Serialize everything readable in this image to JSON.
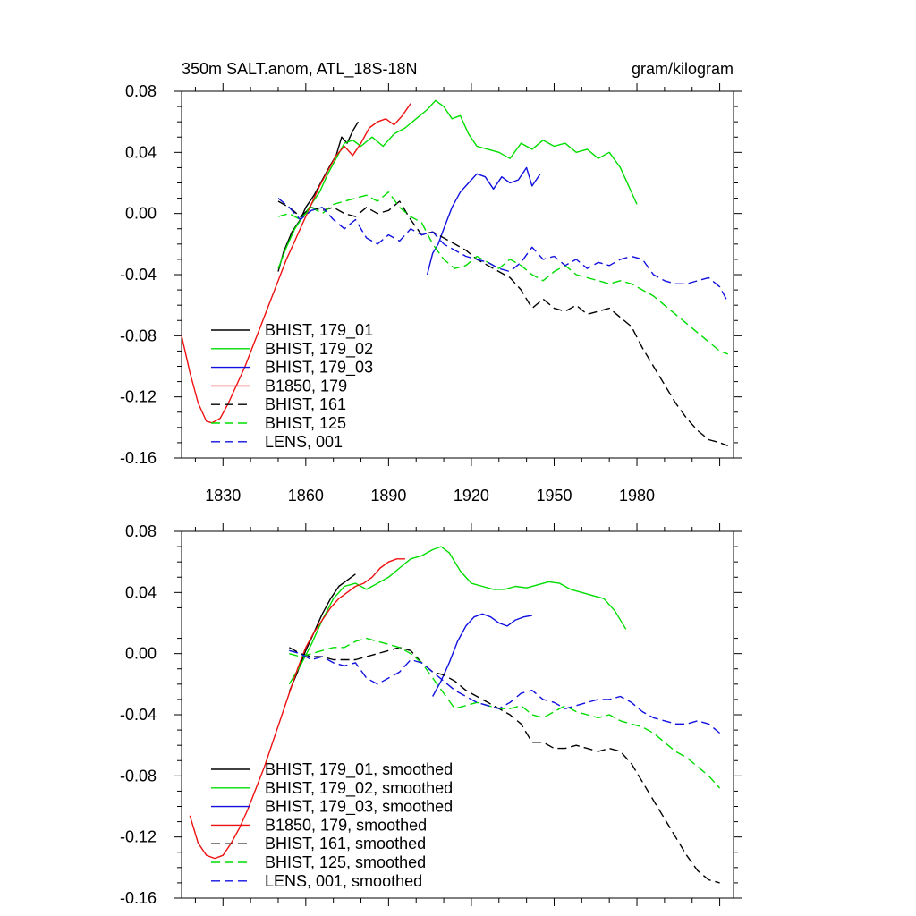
{
  "chart_data": [
    {
      "type": "line",
      "title": "350m SALT.anom, ATL_18S-18N",
      "units": "gram/kilogram",
      "xlim": [
        1815,
        2015
      ],
      "ylim": [
        -0.16,
        0.08
      ],
      "x_ticks": [
        1830,
        1860,
        1890,
        1920,
        1950,
        1980
      ],
      "x_tick_labels": [
        "1830",
        "1860",
        "1890",
        "1920",
        "1950",
        "1980"
      ],
      "y_ticks": [
        -0.16,
        -0.12,
        -0.08,
        -0.04,
        0.0,
        0.04,
        0.08
      ],
      "y_tick_labels": [
        "-0.16",
        "-0.12",
        "-0.08",
        "-0.04",
        "0.00",
        "0.04",
        "0.08"
      ],
      "legend_position": "bottom-left",
      "series": [
        {
          "name": "BHIST, 179_01",
          "color": "#000000",
          "dash": "solid",
          "x": [
            1850,
            1852,
            1855,
            1858,
            1860,
            1863,
            1866,
            1869,
            1871,
            1873,
            1875,
            1877,
            1879
          ],
          "y": [
            -0.038,
            -0.025,
            -0.012,
            -0.004,
            0.004,
            0.012,
            0.022,
            0.032,
            0.038,
            0.05,
            0.046,
            0.054,
            0.06
          ]
        },
        {
          "name": "BHIST, 179_02",
          "color": "#00dd00",
          "dash": "solid",
          "x": [
            1850,
            1853,
            1856,
            1859,
            1862,
            1865,
            1868,
            1871,
            1874,
            1877,
            1880,
            1884,
            1888,
            1892,
            1896,
            1900,
            1904,
            1907,
            1910,
            1913,
            1916,
            1919,
            1922,
            1926,
            1930,
            1934,
            1938,
            1942,
            1946,
            1950,
            1954,
            1958,
            1962,
            1966,
            1970,
            1974,
            1977,
            1980
          ],
          "y": [
            -0.036,
            -0.022,
            -0.01,
            -0.002,
            0.006,
            0.014,
            0.026,
            0.036,
            0.046,
            0.048,
            0.044,
            0.05,
            0.044,
            0.052,
            0.056,
            0.062,
            0.068,
            0.074,
            0.07,
            0.062,
            0.064,
            0.052,
            0.044,
            0.042,
            0.04,
            0.036,
            0.046,
            0.042,
            0.048,
            0.044,
            0.046,
            0.04,
            0.042,
            0.036,
            0.04,
            0.03,
            0.018,
            0.006
          ]
        },
        {
          "name": "BHIST, 179_03",
          "color": "#1010e0",
          "dash": "solid",
          "x": [
            1904,
            1906,
            1908,
            1910,
            1913,
            1916,
            1919,
            1922,
            1925,
            1928,
            1931,
            1934,
            1937,
            1940,
            1942,
            1945
          ],
          "y": [
            -0.04,
            -0.026,
            -0.02,
            -0.01,
            0.004,
            0.014,
            0.02,
            0.026,
            0.024,
            0.016,
            0.024,
            0.02,
            0.022,
            0.03,
            0.018,
            0.026
          ]
        },
        {
          "name": "B1850, 179",
          "color": "#ee1010",
          "dash": "solid",
          "x": [
            1815,
            1818,
            1821,
            1824,
            1826,
            1829,
            1832,
            1835,
            1838,
            1841,
            1844,
            1847,
            1850,
            1853,
            1856,
            1859,
            1862,
            1865,
            1868,
            1871,
            1874,
            1877,
            1880,
            1883,
            1886,
            1889,
            1892,
            1895,
            1898
          ],
          "y": [
            -0.08,
            -0.104,
            -0.124,
            -0.136,
            -0.137,
            -0.134,
            -0.124,
            -0.112,
            -0.1,
            -0.086,
            -0.072,
            -0.058,
            -0.044,
            -0.03,
            -0.018,
            -0.006,
            0.006,
            0.018,
            0.028,
            0.038,
            0.044,
            0.038,
            0.046,
            0.056,
            0.06,
            0.062,
            0.058,
            0.064,
            0.072
          ]
        },
        {
          "name": "BHIST, 161",
          "color": "#000000",
          "dash": "dashed",
          "x": [
            1850,
            1854,
            1858,
            1862,
            1866,
            1870,
            1874,
            1878,
            1882,
            1886,
            1890,
            1894,
            1898,
            1902,
            1906,
            1910,
            1914,
            1918,
            1922,
            1926,
            1930,
            1934,
            1938,
            1942,
            1946,
            1950,
            1954,
            1958,
            1962,
            1966,
            1970,
            1974,
            1978,
            1982,
            1986,
            1990,
            1994,
            1998,
            2002,
            2006,
            2010,
            2013
          ],
          "y": [
            0.008,
            0.004,
            -0.002,
            0.004,
            0.002,
            0.004,
            0.0,
            -0.002,
            0.004,
            0.0,
            0.002,
            0.008,
            -0.004,
            -0.014,
            -0.012,
            -0.016,
            -0.02,
            -0.024,
            -0.03,
            -0.034,
            -0.038,
            -0.042,
            -0.05,
            -0.062,
            -0.056,
            -0.062,
            -0.064,
            -0.06,
            -0.066,
            -0.064,
            -0.062,
            -0.068,
            -0.074,
            -0.088,
            -0.1,
            -0.112,
            -0.124,
            -0.134,
            -0.142,
            -0.148,
            -0.15,
            -0.152
          ]
        },
        {
          "name": "BHIST, 125",
          "color": "#00dd00",
          "dash": "dashed",
          "x": [
            1850,
            1854,
            1858,
            1862,
            1866,
            1870,
            1874,
            1878,
            1882,
            1886,
            1890,
            1894,
            1898,
            1902,
            1906,
            1910,
            1914,
            1918,
            1922,
            1926,
            1930,
            1934,
            1938,
            1942,
            1946,
            1950,
            1954,
            1958,
            1962,
            1966,
            1970,
            1974,
            1978,
            1982,
            1986,
            1990,
            1994,
            1998,
            2002,
            2006,
            2010,
            2013
          ],
          "y": [
            -0.002,
            0.0,
            -0.004,
            0.004,
            0.0,
            0.006,
            0.008,
            0.01,
            0.012,
            0.008,
            0.014,
            0.004,
            -0.002,
            -0.006,
            -0.02,
            -0.03,
            -0.036,
            -0.034,
            -0.028,
            -0.032,
            -0.036,
            -0.03,
            -0.034,
            -0.04,
            -0.044,
            -0.038,
            -0.034,
            -0.04,
            -0.042,
            -0.044,
            -0.046,
            -0.044,
            -0.046,
            -0.05,
            -0.054,
            -0.06,
            -0.066,
            -0.072,
            -0.078,
            -0.084,
            -0.09,
            -0.092
          ]
        },
        {
          "name": "LENS, 001",
          "color": "#1010e0",
          "dash": "dashed",
          "x": [
            1850,
            1854,
            1858,
            1862,
            1866,
            1870,
            1874,
            1878,
            1882,
            1886,
            1890,
            1894,
            1898,
            1902,
            1906,
            1910,
            1914,
            1918,
            1922,
            1926,
            1930,
            1934,
            1938,
            1942,
            1946,
            1950,
            1954,
            1958,
            1962,
            1966,
            1970,
            1974,
            1978,
            1982,
            1986,
            1990,
            1994,
            1998,
            2002,
            2006,
            2010,
            2013
          ],
          "y": [
            0.01,
            0.004,
            -0.004,
            0.002,
            0.004,
            -0.004,
            -0.01,
            -0.004,
            -0.016,
            -0.02,
            -0.014,
            -0.018,
            -0.01,
            -0.014,
            -0.012,
            -0.02,
            -0.024,
            -0.028,
            -0.03,
            -0.032,
            -0.036,
            -0.038,
            -0.032,
            -0.022,
            -0.03,
            -0.028,
            -0.034,
            -0.03,
            -0.036,
            -0.032,
            -0.034,
            -0.03,
            -0.028,
            -0.03,
            -0.04,
            -0.044,
            -0.046,
            -0.046,
            -0.044,
            -0.042,
            -0.048,
            -0.058
          ]
        }
      ]
    },
    {
      "type": "line",
      "title": "",
      "units": "",
      "xlim": [
        1815,
        2015
      ],
      "ylim": [
        -0.16,
        0.08
      ],
      "x_ticks": [
        1830,
        1860,
        1890,
        1920,
        1950,
        1980
      ],
      "x_tick_labels": [],
      "y_ticks": [
        -0.16,
        -0.12,
        -0.08,
        -0.04,
        0.0,
        0.04,
        0.08
      ],
      "y_tick_labels": [
        "-0.16",
        "-0.12",
        "-0.08",
        "-0.04",
        "0.00",
        "0.04",
        "0.08"
      ],
      "legend_position": "bottom-left",
      "series": [
        {
          "name": "BHIST, 179_01, smoothed",
          "color": "#000000",
          "dash": "solid",
          "x": [
            1854,
            1857,
            1860,
            1863,
            1866,
            1869,
            1872,
            1875,
            1878
          ],
          "y": [
            -0.025,
            -0.012,
            0.002,
            0.014,
            0.026,
            0.036,
            0.044,
            0.048,
            0.052
          ]
        },
        {
          "name": "BHIST, 179_02, smoothed",
          "color": "#00dd00",
          "dash": "solid",
          "x": [
            1854,
            1858,
            1862,
            1866,
            1870,
            1874,
            1878,
            1882,
            1886,
            1890,
            1894,
            1898,
            1902,
            1906,
            1909,
            1912,
            1916,
            1920,
            1924,
            1928,
            1932,
            1936,
            1940,
            1944,
            1948,
            1952,
            1956,
            1960,
            1964,
            1968,
            1972,
            1976
          ],
          "y": [
            -0.02,
            -0.008,
            0.006,
            0.022,
            0.036,
            0.044,
            0.046,
            0.042,
            0.046,
            0.05,
            0.056,
            0.062,
            0.064,
            0.068,
            0.07,
            0.066,
            0.054,
            0.046,
            0.044,
            0.042,
            0.042,
            0.044,
            0.043,
            0.045,
            0.047,
            0.046,
            0.042,
            0.04,
            0.038,
            0.036,
            0.028,
            0.016
          ]
        },
        {
          "name": "BHIST, 179_03, smoothed",
          "color": "#1010e0",
          "dash": "solid",
          "x": [
            1906,
            1909,
            1912,
            1915,
            1918,
            1921,
            1924,
            1927,
            1930,
            1933,
            1936,
            1939,
            1942
          ],
          "y": [
            -0.028,
            -0.018,
            -0.006,
            0.008,
            0.018,
            0.024,
            0.026,
            0.024,
            0.02,
            0.018,
            0.022,
            0.024,
            0.025
          ]
        },
        {
          "name": "B1850, 179, smoothed",
          "color": "#ee1010",
          "dash": "solid",
          "x": [
            1818,
            1821,
            1824,
            1827,
            1830,
            1833,
            1836,
            1839,
            1842,
            1845,
            1848,
            1851,
            1854,
            1857,
            1860,
            1863,
            1866,
            1869,
            1872,
            1875,
            1878,
            1881,
            1884,
            1887,
            1890,
            1893,
            1896
          ],
          "y": [
            -0.106,
            -0.124,
            -0.132,
            -0.134,
            -0.132,
            -0.124,
            -0.114,
            -0.102,
            -0.088,
            -0.074,
            -0.058,
            -0.042,
            -0.026,
            -0.01,
            0.004,
            0.014,
            0.022,
            0.03,
            0.036,
            0.04,
            0.044,
            0.046,
            0.05,
            0.056,
            0.06,
            0.062,
            0.062
          ]
        },
        {
          "name": "BHIST, 161, smoothed",
          "color": "#000000",
          "dash": "dashed",
          "x": [
            1854,
            1858,
            1862,
            1866,
            1870,
            1874,
            1878,
            1882,
            1886,
            1890,
            1894,
            1898,
            1902,
            1906,
            1910,
            1914,
            1918,
            1922,
            1926,
            1930,
            1934,
            1938,
            1942,
            1946,
            1950,
            1954,
            1958,
            1962,
            1966,
            1970,
            1974,
            1978,
            1982,
            1986,
            1990,
            1994,
            1998,
            2002,
            2006,
            2010
          ],
          "y": [
            0.004,
            0.0,
            -0.002,
            -0.002,
            -0.004,
            -0.004,
            -0.004,
            -0.002,
            0.0,
            0.002,
            0.004,
            0.002,
            -0.006,
            -0.012,
            -0.014,
            -0.018,
            -0.024,
            -0.028,
            -0.032,
            -0.036,
            -0.04,
            -0.046,
            -0.058,
            -0.058,
            -0.062,
            -0.062,
            -0.06,
            -0.062,
            -0.064,
            -0.062,
            -0.064,
            -0.072,
            -0.084,
            -0.096,
            -0.108,
            -0.12,
            -0.132,
            -0.142,
            -0.148,
            -0.15
          ]
        },
        {
          "name": "BHIST, 125, smoothed",
          "color": "#00dd00",
          "dash": "dashed",
          "x": [
            1854,
            1858,
            1862,
            1866,
            1870,
            1874,
            1878,
            1882,
            1886,
            1890,
            1894,
            1898,
            1902,
            1906,
            1910,
            1914,
            1918,
            1922,
            1926,
            1930,
            1934,
            1938,
            1942,
            1946,
            1950,
            1954,
            1958,
            1962,
            1966,
            1970,
            1974,
            1978,
            1982,
            1986,
            1990,
            1994,
            1998,
            2002,
            2006,
            2010
          ],
          "y": [
            0.0,
            -0.002,
            0.0,
            0.002,
            0.004,
            0.004,
            0.008,
            0.01,
            0.008,
            0.006,
            0.004,
            0.0,
            -0.006,
            -0.016,
            -0.026,
            -0.036,
            -0.034,
            -0.032,
            -0.034,
            -0.036,
            -0.036,
            -0.034,
            -0.04,
            -0.042,
            -0.038,
            -0.034,
            -0.038,
            -0.04,
            -0.042,
            -0.04,
            -0.044,
            -0.046,
            -0.048,
            -0.052,
            -0.058,
            -0.064,
            -0.068,
            -0.074,
            -0.08,
            -0.088
          ]
        },
        {
          "name": "LENS, 001, smoothed",
          "color": "#1010e0",
          "dash": "dashed",
          "x": [
            1854,
            1858,
            1862,
            1866,
            1870,
            1874,
            1878,
            1882,
            1886,
            1890,
            1894,
            1898,
            1902,
            1906,
            1910,
            1914,
            1918,
            1922,
            1926,
            1930,
            1934,
            1938,
            1942,
            1946,
            1950,
            1954,
            1958,
            1962,
            1966,
            1970,
            1974,
            1978,
            1982,
            1986,
            1990,
            1994,
            1998,
            2002,
            2006,
            2010
          ],
          "y": [
            0.002,
            0.0,
            -0.004,
            -0.002,
            -0.006,
            -0.008,
            -0.006,
            -0.016,
            -0.02,
            -0.016,
            -0.012,
            -0.004,
            -0.006,
            -0.012,
            -0.018,
            -0.024,
            -0.028,
            -0.032,
            -0.034,
            -0.036,
            -0.032,
            -0.026,
            -0.024,
            -0.03,
            -0.032,
            -0.036,
            -0.034,
            -0.032,
            -0.03,
            -0.03,
            -0.028,
            -0.032,
            -0.038,
            -0.042,
            -0.044,
            -0.046,
            -0.046,
            -0.044,
            -0.046,
            -0.052
          ]
        }
      ]
    }
  ]
}
